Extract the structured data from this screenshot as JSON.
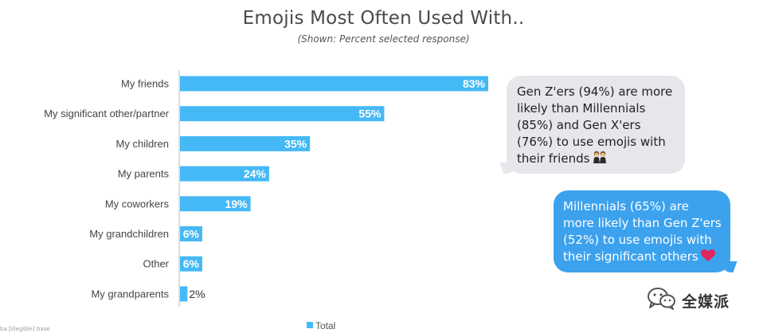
{
  "colors": {
    "bar": "#45b9f5",
    "bar_label": "#ffffff",
    "outside_label": "#333333",
    "category_label": "#444444",
    "axis": "#bdbdbd"
  },
  "chart_data": {
    "type": "bar",
    "orientation": "horizontal",
    "title": "Emojis Most Often Used With..",
    "subtitle": "(Shown: Percent selected response)",
    "categories": [
      "My friends",
      "My significant other/partner",
      "My children",
      "My parents",
      "My coworkers",
      "My grandchildren",
      "Other",
      "My grandparents"
    ],
    "series": [
      {
        "name": "Total",
        "values": [
          83,
          55,
          35,
          24,
          19,
          6,
          6,
          2
        ]
      }
    ],
    "data_labels": [
      "83%",
      "55%",
      "35%",
      "24%",
      "19%",
      "6%",
      "6%",
      "2%"
    ],
    "value_unit": "%",
    "xlim": [
      0,
      100
    ],
    "grid": false,
    "legend_position": "bottom"
  },
  "callouts": {
    "genz": {
      "text": "Gen Z'ers (94%) are more likely than Millennials (85%) and Gen X'ers (76%) to use emojis with their friends",
      "emoji_icon": "two-women-emoji"
    },
    "millennials": {
      "text": "Millennials (65%) are more likely than Gen Z'ers (52%) to use emojis with their significant others",
      "emoji_icon": "red-heart-emoji"
    }
  },
  "watermark": {
    "text": "全媒派",
    "icon": "wechat-logo-icon"
  },
  "footnote": {
    "text": "ba [illegible] base"
  }
}
